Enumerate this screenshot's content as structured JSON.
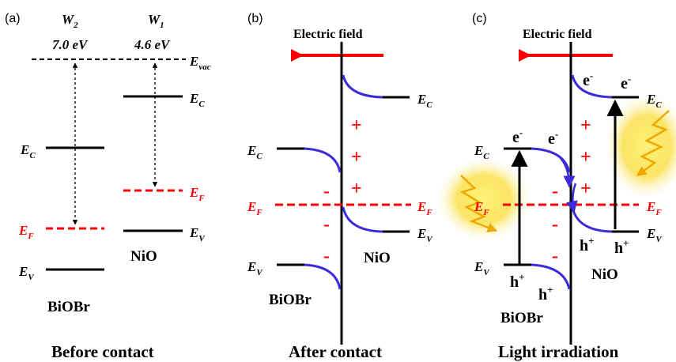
{
  "colors": {
    "black": "#000000",
    "red": "#ff0000",
    "band_bend": "#3b2bd8",
    "glow": "#f7d84a",
    "glow_stroke": "#f0a800"
  },
  "panel_a": {
    "label": "(a)",
    "w2": "W",
    "w2_sub": "2",
    "w2_value": "7.0 eV",
    "w1": "W",
    "w1_sub": "1",
    "w1_value": "4.6 eV",
    "evac": "E",
    "evac_sub": "vac",
    "ec_left": "E",
    "ec_left_sub": "C",
    "ef_left": "E",
    "ef_left_sub": "F",
    "ev_left": "E",
    "ev_left_sub": "V",
    "ec_right": "E",
    "ec_right_sub": "C",
    "ef_right": "E",
    "ef_right_sub": "F",
    "ev_right": "E",
    "ev_right_sub": "V",
    "material_left": "BiOBr",
    "material_right": "NiO",
    "caption": "Before contact"
  },
  "panel_b": {
    "label": "(b)",
    "field_label": "Electric field",
    "ec_left": "E",
    "ec_left_sub": "C",
    "ef_left": "E",
    "ef_left_sub": "F",
    "ev_left": "E",
    "ev_left_sub": "V",
    "ec_right": "E",
    "ec_right_sub": "C",
    "ef_right": "E",
    "ef_right_sub": "F",
    "ev_right": "E",
    "ev_right_sub": "V",
    "plus": "+",
    "minus": "-",
    "material_left": "BiOBr",
    "material_right": "NiO",
    "caption": "After contact"
  },
  "panel_c": {
    "label": "(c)",
    "field_label": "Electric field",
    "ec_left": "E",
    "ec_left_sub": "C",
    "ef_left": "E",
    "ef_left_sub": "F",
    "ev_left": "E",
    "ev_left_sub": "V",
    "ec_right": "E",
    "ec_right_sub": "C",
    "ef_right": "E",
    "ef_right_sub": "F",
    "ev_right": "E",
    "ev_right_sub": "V",
    "electron": "e",
    "electron_sup": "-",
    "hole": "h",
    "hole_sup": "+",
    "plus": "+",
    "minus": "-",
    "material_left": "BiOBr",
    "material_right": "NiO",
    "caption": "Light irradiation"
  }
}
